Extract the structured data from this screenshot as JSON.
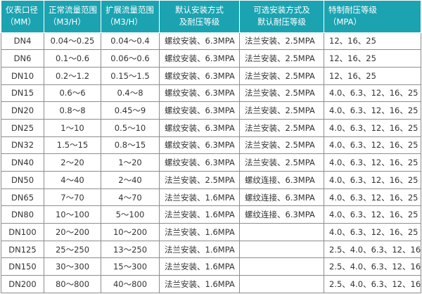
{
  "headers": [
    [
      "仪表口径",
      "（MM）"
    ],
    [
      "正常流量范围",
      "（M3/H）"
    ],
    [
      "扩展流量范围",
      "（M3/H）"
    ],
    [
      "默认安装方式",
      "及耐压等级"
    ],
    [
      "可选安装方式及",
      "默认耐压等级"
    ],
    [
      "特制耐压等级",
      "（MPA）"
    ]
  ],
  "rows": [
    [
      "DN4",
      "0.04～0.25",
      "0.04～0.4",
      "螺纹安装、6.3MPA",
      "法兰安装、2.5MPA",
      "12、16、25"
    ],
    [
      "DN6",
      "0.1～0.6",
      "0.06～0.6",
      "螺纹安装、6.3MPA",
      "法兰安装、2.5MPA",
      "12、16、25"
    ],
    [
      "DN10",
      "0.2～1.2",
      "0.15～1.5",
      "螺纹安装、6.3MPA",
      "法兰安装、2.5MPA",
      "12、16、25"
    ],
    [
      "DN15",
      "0.6～6",
      "0.4～8",
      "螺纹安装、6.3MPA",
      "法兰安装、2.5MPA",
      "4.0、6.3、12、16、25"
    ],
    [
      "DN20",
      "0.8～8",
      "0.45～9",
      "螺纹安装、6.3MPA",
      "法兰安装、2.5MPA",
      "4.0、6.3、12、16、25"
    ],
    [
      "DN25",
      "1～10",
      "0.5～10",
      "螺纹安装、6.3MPA",
      "法兰安装、2.5MPA",
      "4.0、6.3、12、16、25"
    ],
    [
      "DN32",
      "1.5～15",
      "0.8～15",
      "螺纹安装、6.3MPA",
      "法兰安装、2.5MPA",
      "4.0、6.3、12、16、25"
    ],
    [
      "DN40",
      "2～20",
      "1～20",
      "螺纹安装、6.3MPA",
      "法兰安装、2.5MPA",
      "4.0、6.3、12、16、25"
    ],
    [
      "DN50",
      "4～40",
      "2～40",
      "法兰安装、2.5MPA",
      "螺纹连接、6.3MPA",
      "4.0、6.3、12、16、25"
    ],
    [
      "DN65",
      "7～70",
      "4～70",
      "法兰安装、1.6MPA",
      "螺纹连接、6.3MPA",
      "4.0、6.3、12、16、25"
    ],
    [
      "DN80",
      "10～100",
      "5～100",
      "法兰安装、1.6MPA",
      "螺纹连接、6.3MPA",
      "4.0、6.3、12、16、25"
    ],
    [
      "DN100",
      "20～200",
      "10～200",
      "法兰安装、1.6MPA",
      "",
      "4.0、6.3、12、16、25"
    ],
    [
      "DN125",
      "25～250",
      "13～250",
      "法兰安装、1.6MPA",
      "",
      "2.5、4.0、6.3、12、16"
    ],
    [
      "DN150",
      "30～300",
      "15～300",
      "法兰安装、1.6MPA",
      "",
      "2.5、4.0、6.3、12、16"
    ],
    [
      "DN200",
      "80～800",
      "40～800",
      "法兰安装、1.6MPA",
      "",
      "2.5、4.0、6.3、12、16"
    ]
  ],
  "colors": {
    "header_bg": "#1ba3b1",
    "header_text": "#ffffff",
    "border": "#8d8d8d"
  }
}
